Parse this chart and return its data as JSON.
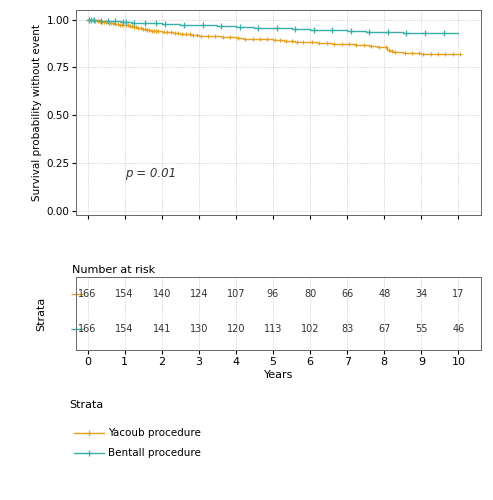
{
  "yacoub_color": "#E8A020",
  "bentall_color": "#3AAFA9",
  "background_color": "#FFFFFF",
  "ylabel": "Survival probability without event",
  "xlabel": "Years",
  "ylim": [
    -0.02,
    1.05
  ],
  "xlim": [
    -0.3,
    10.6
  ],
  "yticks": [
    0.0,
    0.25,
    0.5,
    0.75,
    1.0
  ],
  "xticks": [
    0,
    1,
    2,
    3,
    4,
    5,
    6,
    7,
    8,
    9,
    10
  ],
  "p_value_text": "p = 0.01",
  "number_at_risk_title": "Number at risk",
  "strata_label": "Strata",
  "legend_yacoub": "Yacoub procedure",
  "legend_bentall": "Bentall procedure",
  "risk_times": [
    0,
    1,
    2,
    3,
    4,
    5,
    6,
    7,
    8,
    9,
    10
  ],
  "yacoub_risk": [
    166,
    154,
    140,
    124,
    107,
    96,
    80,
    66,
    48,
    34,
    17
  ],
  "bentall_risk": [
    166,
    154,
    141,
    130,
    120,
    113,
    102,
    83,
    67,
    55,
    46
  ],
  "yacoub_km_times": [
    0,
    0.05,
    0.1,
    0.15,
    0.2,
    0.3,
    0.4,
    0.5,
    0.6,
    0.65,
    0.7,
    0.75,
    0.8,
    0.85,
    0.9,
    1.0,
    1.05,
    1.1,
    1.15,
    1.2,
    1.3,
    1.4,
    1.5,
    1.6,
    1.7,
    1.8,
    1.9,
    2.0,
    2.1,
    2.2,
    2.3,
    2.4,
    2.5,
    2.6,
    2.7,
    2.8,
    2.9,
    3.0,
    3.2,
    3.5,
    3.7,
    4.0,
    4.2,
    4.4,
    4.6,
    4.8,
    5.0,
    5.2,
    5.4,
    5.6,
    5.8,
    6.0,
    6.2,
    6.5,
    6.8,
    7.0,
    7.2,
    7.5,
    7.8,
    8.0,
    8.1,
    8.2,
    8.25,
    8.3,
    8.5,
    8.7,
    8.9,
    9.0,
    9.2,
    9.5,
    9.7,
    10.0
  ],
  "yacoub_km_surv": [
    1.0,
    0.994,
    0.988,
    0.982,
    0.976,
    0.97,
    0.964,
    0.958,
    0.952,
    0.946,
    0.94,
    0.934,
    0.928,
    0.922,
    0.916,
    0.91,
    0.904,
    0.898,
    0.892,
    0.886,
    0.88,
    0.874,
    0.868,
    0.862,
    0.858,
    0.854,
    0.85,
    0.946,
    0.942,
    0.938,
    0.934,
    0.93,
    0.926,
    0.922,
    0.918,
    0.914,
    0.91,
    0.906,
    0.902,
    0.898,
    0.894,
    0.89,
    0.886,
    0.882,
    0.878,
    0.874,
    0.87,
    0.866,
    0.862,
    0.858,
    0.854,
    0.85,
    0.846,
    0.842,
    0.838,
    0.858,
    0.854,
    0.85,
    0.846,
    0.84,
    0.834,
    0.828,
    0.822,
    0.816,
    0.832,
    0.828,
    0.824,
    0.82,
    0.818,
    0.816,
    0.814,
    0.814
  ],
  "bentall_km_times": [
    0,
    0.05,
    0.1,
    0.2,
    0.4,
    0.6,
    0.8,
    1.0,
    1.2,
    1.5,
    1.8,
    2.0,
    2.5,
    3.0,
    3.5,
    4.0,
    4.5,
    5.0,
    5.5,
    6.0,
    6.5,
    7.0,
    7.5,
    8.0,
    8.5,
    9.0,
    9.5,
    10.0
  ],
  "bentall_km_surv": [
    1.0,
    0.998,
    0.996,
    0.994,
    0.992,
    0.99,
    0.988,
    0.986,
    0.984,
    0.982,
    0.98,
    0.978,
    0.975,
    0.972,
    0.969,
    0.966,
    0.963,
    0.96,
    0.957,
    0.954,
    0.951,
    0.948,
    0.945,
    0.942,
    0.939,
    0.936,
    0.934,
    0.932
  ]
}
